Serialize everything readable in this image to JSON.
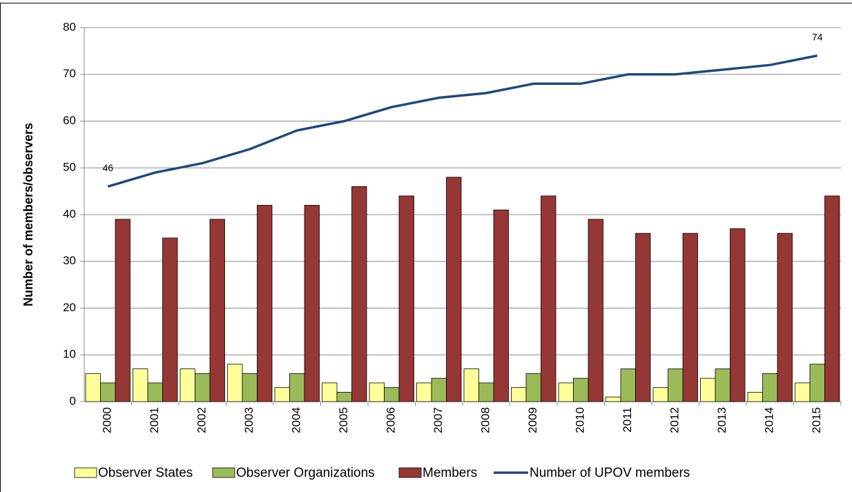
{
  "chart_data": {
    "type": "bar_line",
    "y_label": "Number of members/observers",
    "categories": [
      "2000",
      "2001",
      "2002",
      "2003",
      "2004",
      "2005",
      "2006",
      "2007",
      "2008",
      "2009",
      "2010",
      "2011",
      "2012",
      "2013",
      "2014",
      "2015"
    ],
    "series": [
      {
        "name": "Observer States",
        "type": "bar",
        "color": "#ffff99",
        "values": [
          6,
          7,
          7,
          8,
          3,
          4,
          4,
          4,
          7,
          3,
          4,
          1,
          3,
          5,
          2,
          4
        ]
      },
      {
        "name": "Observer Organizations",
        "type": "bar",
        "color": "#9bbb59",
        "values": [
          4,
          4,
          6,
          6,
          6,
          2,
          3,
          5,
          4,
          6,
          5,
          7,
          7,
          7,
          6,
          8
        ]
      },
      {
        "name": "Members",
        "type": "bar",
        "color": "#953735",
        "values": [
          39,
          35,
          39,
          42,
          42,
          46,
          44,
          48,
          41,
          44,
          39,
          36,
          36,
          37,
          36,
          44
        ]
      },
      {
        "name": "Number of UPOV members",
        "type": "line",
        "color": "#1f497d",
        "values": [
          46,
          49,
          51,
          54,
          58,
          60,
          63,
          65,
          66,
          68,
          68,
          70,
          70,
          71,
          72,
          74
        ],
        "value_labels": [
          "46",
          null,
          null,
          null,
          null,
          null,
          null,
          null,
          null,
          null,
          null,
          null,
          null,
          null,
          null,
          "74"
        ]
      }
    ],
    "ylim": [
      0,
      80
    ],
    "yticks": [
      0,
      10,
      20,
      30,
      40,
      50,
      60,
      70,
      80
    ],
    "grid": true,
    "legend": "bottom"
  }
}
